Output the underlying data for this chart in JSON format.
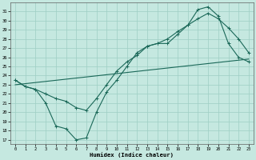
{
  "xlabel": "Humidex (Indice chaleur)",
  "xlim": [
    -0.5,
    23.5
  ],
  "ylim": [
    16.5,
    32.0
  ],
  "xticks": [
    0,
    1,
    2,
    3,
    4,
    5,
    6,
    7,
    8,
    9,
    10,
    11,
    12,
    13,
    14,
    15,
    16,
    17,
    18,
    19,
    20,
    21,
    22,
    23
  ],
  "yticks": [
    17,
    18,
    19,
    20,
    21,
    22,
    23,
    24,
    25,
    26,
    27,
    28,
    29,
    30,
    31
  ],
  "bg_color": "#c5e8e0",
  "grid_color": "#9ecec4",
  "line_color": "#1a6858",
  "line1_x": [
    0,
    1,
    2,
    3,
    4,
    5,
    6,
    7,
    8,
    9,
    10,
    11,
    12,
    13,
    14,
    15,
    16,
    17,
    18,
    19,
    20,
    21,
    22,
    23
  ],
  "line1_y": [
    23.5,
    22.8,
    22.5,
    21.0,
    18.5,
    18.2,
    17.0,
    17.2,
    20.0,
    22.2,
    23.5,
    25.0,
    26.5,
    27.2,
    27.5,
    27.5,
    28.5,
    29.5,
    31.2,
    31.5,
    30.5,
    27.5,
    26.0,
    25.5
  ],
  "line2_x": [
    0,
    1,
    2,
    3,
    4,
    5,
    6,
    7,
    8,
    9,
    10,
    11,
    12,
    13,
    14,
    15,
    16,
    17,
    18,
    19,
    20,
    21,
    22,
    23
  ],
  "line2_y": [
    23.5,
    22.8,
    22.5,
    22.0,
    21.5,
    21.2,
    20.5,
    20.2,
    21.5,
    23.0,
    24.5,
    25.5,
    26.2,
    27.2,
    27.5,
    28.0,
    28.8,
    29.5,
    30.2,
    30.8,
    30.2,
    29.2,
    28.0,
    26.5
  ],
  "line3_x": [
    0,
    23
  ],
  "line3_y": [
    23.0,
    25.8
  ]
}
